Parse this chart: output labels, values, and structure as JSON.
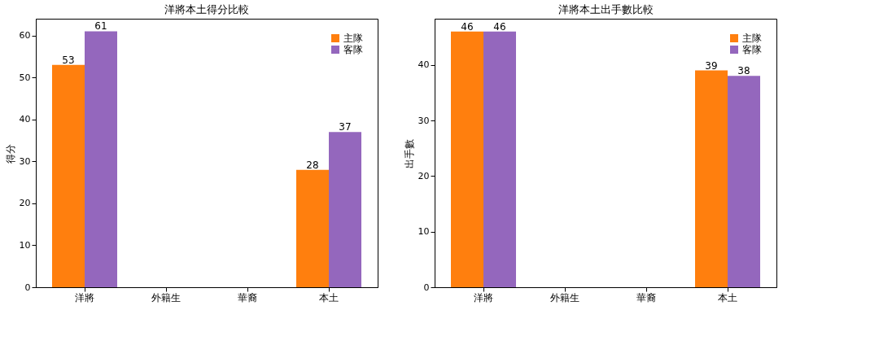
{
  "chart_data": [
    {
      "type": "bar",
      "title": "洋將本土得分比較",
      "ylabel": "得分",
      "categories": [
        "洋將",
        "外籍生",
        "華裔",
        "本土"
      ],
      "series": [
        {
          "name": "主隊",
          "color": "#ff7f0e",
          "values": [
            53,
            null,
            null,
            28
          ]
        },
        {
          "name": "客隊",
          "color": "#9467bd",
          "values": [
            61,
            null,
            null,
            37
          ]
        }
      ],
      "ylim": [
        0,
        64
      ],
      "yticks": [
        0,
        10,
        20,
        30,
        40,
        50,
        60
      ],
      "grid": false,
      "legend": "top right",
      "data_labels": true
    },
    {
      "type": "bar",
      "title": "洋將本土出手數比較",
      "ylabel": "出手數",
      "categories": [
        "洋將",
        "外籍生",
        "華裔",
        "本土"
      ],
      "series": [
        {
          "name": "主隊",
          "color": "#ff7f0e",
          "values": [
            46,
            null,
            null,
            39
          ]
        },
        {
          "name": "客隊",
          "color": "#9467bd",
          "values": [
            46,
            null,
            null,
            38
          ]
        }
      ],
      "ylim": [
        0,
        48.3
      ],
      "yticks": [
        0,
        10,
        20,
        30,
        40
      ],
      "grid": false,
      "legend": "top right",
      "data_labels": true
    }
  ]
}
